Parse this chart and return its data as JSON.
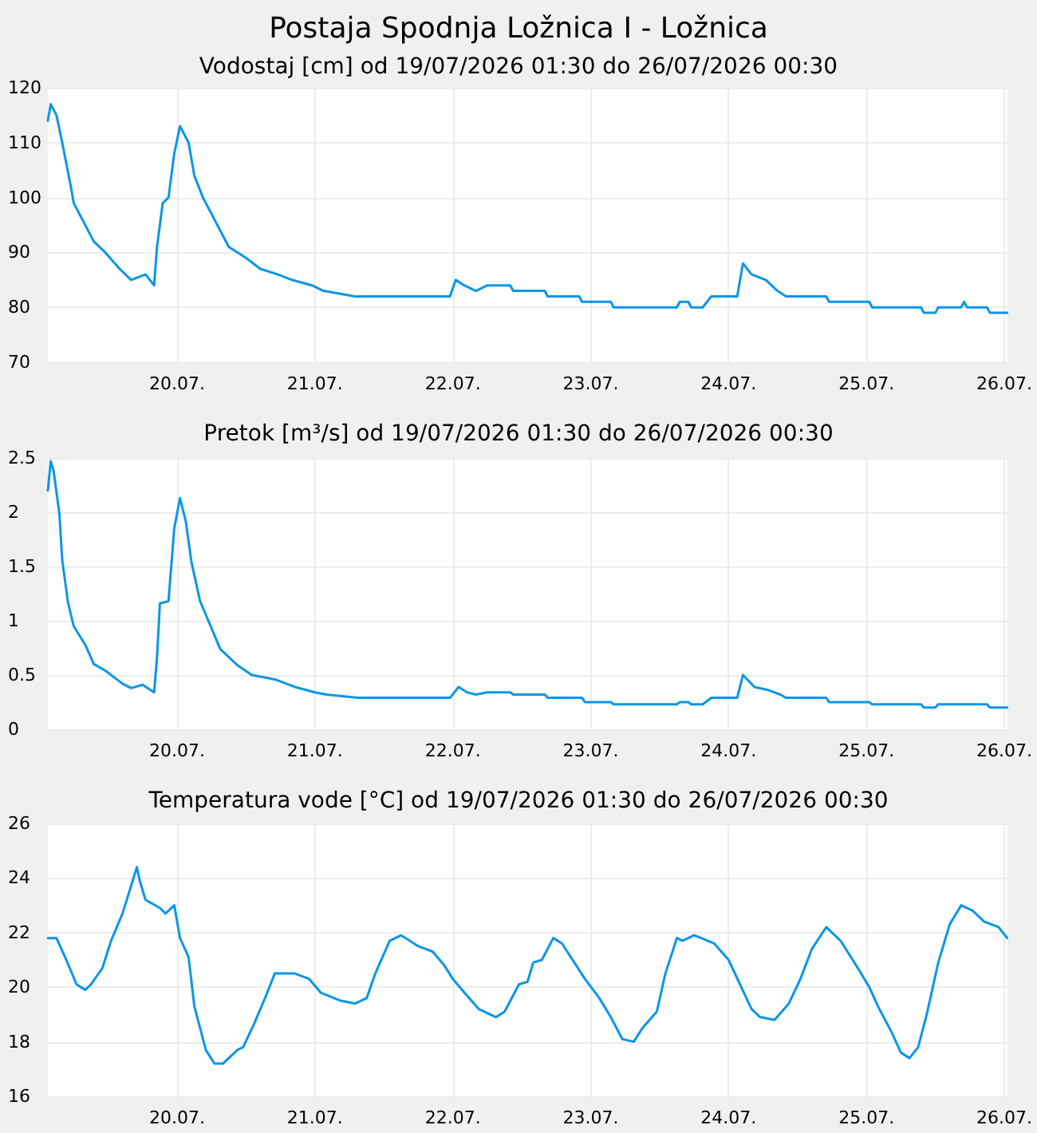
{
  "chart_data": [
    {
      "type": "line",
      "title": "Postaja Spodnja Ložnica I - Ložnica",
      "subtitle": "Vodostaj [cm] od 19/07/2026 01:30 do 26/07/2026 00:30",
      "color": "#0a96e8",
      "marker": "none",
      "grid": true,
      "x": [
        "2026-07-19T01:30",
        "2026-07-19T02:00",
        "2026-07-19T03:00",
        "2026-07-19T04:00",
        "2026-07-19T05:30",
        "2026-07-19T06:00",
        "2026-07-19T07:30",
        "2026-07-19T09:30",
        "2026-07-19T11:30",
        "2026-07-19T14:00",
        "2026-07-19T16:00",
        "2026-07-19T18:30",
        "2026-07-19T20:00",
        "2026-07-19T20:30",
        "2026-07-19T21:30",
        "2026-07-19T22:30",
        "2026-07-19T23:30",
        "2026-07-20T00:30",
        "2026-07-20T02:00",
        "2026-07-20T03:00",
        "2026-07-20T04:30",
        "2026-07-20T06:30",
        "2026-07-20T09:00",
        "2026-07-20T12:00",
        "2026-07-20T14:30",
        "2026-07-20T17:30",
        "2026-07-20T20:00",
        "2026-07-20T23:30",
        "2026-07-21T01:30",
        "2026-07-21T07:00",
        "2026-07-21T23:30",
        "2026-07-22T00:30",
        "2026-07-22T02:00",
        "2026-07-22T04:00",
        "2026-07-22T06:00",
        "2026-07-22T10:00",
        "2026-07-22T10:30",
        "2026-07-22T16:00",
        "2026-07-22T16:30",
        "2026-07-22T22:00",
        "2026-07-22T22:30",
        "2026-07-23T03:30",
        "2026-07-23T04:00",
        "2026-07-23T15:00",
        "2026-07-23T15:30",
        "2026-07-23T17:00",
        "2026-07-23T17:30",
        "2026-07-23T19:30",
        "2026-07-23T21:00",
        "2026-07-24T01:30",
        "2026-07-24T02:30",
        "2026-07-24T04:00",
        "2026-07-24T06:30",
        "2026-07-24T08:30",
        "2026-07-24T10:00",
        "2026-07-24T17:00",
        "2026-07-24T17:30",
        "2026-07-25T00:30",
        "2026-07-25T01:00",
        "2026-07-25T09:30",
        "2026-07-25T10:00",
        "2026-07-25T12:00",
        "2026-07-25T12:30",
        "2026-07-25T16:30",
        "2026-07-25T17:00",
        "2026-07-25T17:30",
        "2026-07-25T21:00",
        "2026-07-25T21:30",
        "2026-07-26T00:30"
      ],
      "values": [
        114,
        117,
        115,
        110,
        102,
        99,
        96,
        92,
        90,
        87,
        85,
        86,
        84,
        91,
        99,
        100,
        108,
        113,
        110,
        104,
        100,
        96,
        91,
        89,
        87,
        86,
        85,
        84,
        83,
        82,
        82,
        85,
        84,
        83,
        84,
        84,
        83,
        83,
        82,
        82,
        81,
        81,
        80,
        80,
        81,
        81,
        80,
        80,
        82,
        82,
        88,
        86,
        85,
        83,
        82,
        82,
        81,
        81,
        80,
        80,
        79,
        79,
        80,
        80,
        81,
        80,
        80,
        79,
        79
      ],
      "xlim": [
        "2026-07-19T01:30",
        "2026-07-26T00:30"
      ],
      "xticks": [
        {
          "value": "2026-07-20T00:00",
          "label": "20.07."
        },
        {
          "value": "2026-07-21T00:00",
          "label": "21.07."
        },
        {
          "value": "2026-07-22T00:00",
          "label": "22.07."
        },
        {
          "value": "2026-07-23T00:00",
          "label": "23.07."
        },
        {
          "value": "2026-07-24T00:00",
          "label": "24.07."
        },
        {
          "value": "2026-07-25T00:00",
          "label": "25.07."
        },
        {
          "value": "2026-07-26T00:00",
          "label": "26.07."
        }
      ],
      "ylim": [
        70,
        120
      ],
      "yticks": [
        70,
        80,
        90,
        100,
        110,
        120
      ]
    },
    {
      "type": "line",
      "subtitle": "Pretok [m³/s] od 19/07/2026 01:30 do 26/07/2026 00:30",
      "color": "#0a96e8",
      "marker": "none",
      "grid": true,
      "x": [
        "2026-07-19T01:30",
        "2026-07-19T02:00",
        "2026-07-19T02:30",
        "2026-07-19T03:30",
        "2026-07-19T04:00",
        "2026-07-19T05:00",
        "2026-07-19T06:00",
        "2026-07-19T08:00",
        "2026-07-19T09:30",
        "2026-07-19T11:30",
        "2026-07-19T14:30",
        "2026-07-19T16:00",
        "2026-07-19T18:00",
        "2026-07-19T20:00",
        "2026-07-19T20:30",
        "2026-07-19T21:00",
        "2026-07-19T22:30",
        "2026-07-19T23:30",
        "2026-07-20T00:30",
        "2026-07-20T01:30",
        "2026-07-20T02:30",
        "2026-07-20T04:00",
        "2026-07-20T06:00",
        "2026-07-20T07:30",
        "2026-07-20T10:30",
        "2026-07-20T13:00",
        "2026-07-20T17:00",
        "2026-07-20T20:30",
        "2026-07-21T00:00",
        "2026-07-21T02:00",
        "2026-07-21T07:30",
        "2026-07-21T23:30",
        "2026-07-22T01:00",
        "2026-07-22T02:30",
        "2026-07-22T04:00",
        "2026-07-22T06:00",
        "2026-07-22T10:00",
        "2026-07-22T10:30",
        "2026-07-22T16:00",
        "2026-07-22T16:30",
        "2026-07-22T22:30",
        "2026-07-22T23:00",
        "2026-07-23T03:30",
        "2026-07-23T04:00",
        "2026-07-23T15:00",
        "2026-07-23T15:30",
        "2026-07-23T17:00",
        "2026-07-23T17:30",
        "2026-07-23T19:30",
        "2026-07-23T21:00",
        "2026-07-24T01:30",
        "2026-07-24T02:30",
        "2026-07-24T04:30",
        "2026-07-24T07:00",
        "2026-07-24T09:00",
        "2026-07-24T10:00",
        "2026-07-24T17:00",
        "2026-07-24T17:30",
        "2026-07-25T00:30",
        "2026-07-25T01:00",
        "2026-07-25T09:30",
        "2026-07-25T10:00",
        "2026-07-25T12:00",
        "2026-07-25T12:30",
        "2026-07-25T21:00",
        "2026-07-25T21:30",
        "2026-07-26T00:30"
      ],
      "values": [
        2.2,
        2.47,
        2.38,
        1.99,
        1.56,
        1.17,
        0.95,
        0.78,
        0.6,
        0.54,
        0.42,
        0.38,
        0.41,
        0.34,
        0.66,
        1.16,
        1.18,
        1.85,
        2.13,
        1.92,
        1.54,
        1.18,
        0.93,
        0.74,
        0.59,
        0.5,
        0.46,
        0.39,
        0.34,
        0.32,
        0.29,
        0.29,
        0.39,
        0.34,
        0.32,
        0.34,
        0.34,
        0.32,
        0.32,
        0.29,
        0.29,
        0.25,
        0.25,
        0.23,
        0.23,
        0.25,
        0.25,
        0.23,
        0.23,
        0.29,
        0.29,
        0.5,
        0.39,
        0.36,
        0.32,
        0.29,
        0.29,
        0.25,
        0.25,
        0.23,
        0.23,
        0.2,
        0.2,
        0.23,
        0.23,
        0.2,
        0.2
      ],
      "xlim": [
        "2026-07-19T01:30",
        "2026-07-26T00:30"
      ],
      "xticks": [
        {
          "value": "2026-07-20T00:00",
          "label": "20.07."
        },
        {
          "value": "2026-07-21T00:00",
          "label": "21.07."
        },
        {
          "value": "2026-07-22T00:00",
          "label": "22.07."
        },
        {
          "value": "2026-07-23T00:00",
          "label": "23.07."
        },
        {
          "value": "2026-07-24T00:00",
          "label": "24.07."
        },
        {
          "value": "2026-07-25T00:00",
          "label": "25.07."
        },
        {
          "value": "2026-07-26T00:00",
          "label": "26.07."
        }
      ],
      "ylim": [
        0,
        2.5
      ],
      "yticks": [
        0,
        0.5,
        1,
        1.5,
        2,
        2.5
      ]
    },
    {
      "type": "line",
      "subtitle": "Temperatura vode [°C] od 19/07/2026 01:30 do 26/07/2026 00:30",
      "color": "#0a96e8",
      "marker": "none",
      "grid": true,
      "x": [
        "2026-07-19T01:30",
        "2026-07-19T03:00",
        "2026-07-19T04:30",
        "2026-07-19T06:30",
        "2026-07-19T08:00",
        "2026-07-19T09:00",
        "2026-07-19T11:00",
        "2026-07-19T12:30",
        "2026-07-19T14:30",
        "2026-07-19T17:00",
        "2026-07-19T17:30",
        "2026-07-19T18:30",
        "2026-07-19T21:00",
        "2026-07-19T22:00",
        "2026-07-19T23:30",
        "2026-07-20T00:30",
        "2026-07-20T02:00",
        "2026-07-20T03:00",
        "2026-07-20T05:00",
        "2026-07-20T06:30",
        "2026-07-20T08:00",
        "2026-07-20T10:30",
        "2026-07-20T11:30",
        "2026-07-20T13:30",
        "2026-07-20T15:30",
        "2026-07-20T17:00",
        "2026-07-20T20:30",
        "2026-07-20T23:00",
        "2026-07-21T01:00",
        "2026-07-21T04:30",
        "2026-07-21T07:00",
        "2026-07-21T09:00",
        "2026-07-21T10:30",
        "2026-07-21T13:00",
        "2026-07-21T15:00",
        "2026-07-21T18:00",
        "2026-07-21T20:30",
        "2026-07-21T22:30",
        "2026-07-22T00:00",
        "2026-07-22T02:00",
        "2026-07-22T04:30",
        "2026-07-22T07:30",
        "2026-07-22T09:00",
        "2026-07-22T11:30",
        "2026-07-22T13:00",
        "2026-07-22T14:00",
        "2026-07-22T15:30",
        "2026-07-22T17:30",
        "2026-07-22T19:00",
        "2026-07-22T23:00",
        "2026-07-23T01:30",
        "2026-07-23T03:30",
        "2026-07-23T05:30",
        "2026-07-23T07:30",
        "2026-07-23T09:00",
        "2026-07-23T11:30",
        "2026-07-23T13:00",
        "2026-07-23T15:00",
        "2026-07-23T16:00",
        "2026-07-23T18:00",
        "2026-07-23T21:30",
        "2026-07-24T00:00",
        "2026-07-24T02:00",
        "2026-07-24T04:00",
        "2026-07-24T05:30",
        "2026-07-24T08:00",
        "2026-07-24T10:30",
        "2026-07-24T12:30",
        "2026-07-24T14:30",
        "2026-07-24T17:00",
        "2026-07-24T19:30",
        "2026-07-24T22:30",
        "2026-07-25T00:30",
        "2026-07-25T02:00",
        "2026-07-25T04:30",
        "2026-07-25T06:00",
        "2026-07-25T07:30",
        "2026-07-25T09:00",
        "2026-07-25T10:30",
        "2026-07-25T12:30",
        "2026-07-25T14:30",
        "2026-07-25T16:30",
        "2026-07-25T18:30",
        "2026-07-25T20:30",
        "2026-07-25T23:00",
        "2026-07-26T00:30"
      ],
      "values": [
        21.8,
        21.8,
        21.1,
        20.1,
        19.9,
        20.1,
        20.7,
        21.7,
        22.7,
        24.4,
        23.9,
        23.2,
        22.9,
        22.7,
        23.0,
        21.8,
        21.1,
        19.3,
        17.7,
        17.2,
        17.2,
        17.7,
        17.8,
        18.7,
        19.7,
        20.5,
        20.5,
        20.3,
        19.8,
        19.5,
        19.4,
        19.6,
        20.5,
        21.7,
        21.9,
        21.5,
        21.3,
        20.8,
        20.3,
        19.8,
        19.2,
        18.9,
        19.1,
        20.1,
        20.2,
        20.9,
        21.0,
        21.8,
        21.6,
        20.3,
        19.6,
        18.9,
        18.1,
        18.0,
        18.5,
        19.1,
        20.5,
        21.8,
        21.7,
        21.9,
        21.6,
        21.0,
        20.1,
        19.2,
        18.9,
        18.8,
        19.4,
        20.3,
        21.4,
        22.2,
        21.7,
        20.7,
        20.0,
        19.3,
        18.3,
        17.6,
        17.4,
        17.8,
        19.0,
        20.9,
        22.3,
        23.0,
        22.8,
        22.4,
        22.2,
        21.8
      ],
      "xlim": [
        "2026-07-19T01:30",
        "2026-07-26T00:30"
      ],
      "xticks": [
        {
          "value": "2026-07-20T00:00",
          "label": "20.07."
        },
        {
          "value": "2026-07-21T00:00",
          "label": "21.07."
        },
        {
          "value": "2026-07-22T00:00",
          "label": "22.07."
        },
        {
          "value": "2026-07-23T00:00",
          "label": "23.07."
        },
        {
          "value": "2026-07-24T00:00",
          "label": "24.07."
        },
        {
          "value": "2026-07-25T00:00",
          "label": "25.07."
        },
        {
          "value": "2026-07-26T00:00",
          "label": "26.07."
        }
      ],
      "ylim": [
        16,
        26
      ],
      "yticks": [
        16,
        18,
        20,
        22,
        24,
        26
      ]
    }
  ]
}
